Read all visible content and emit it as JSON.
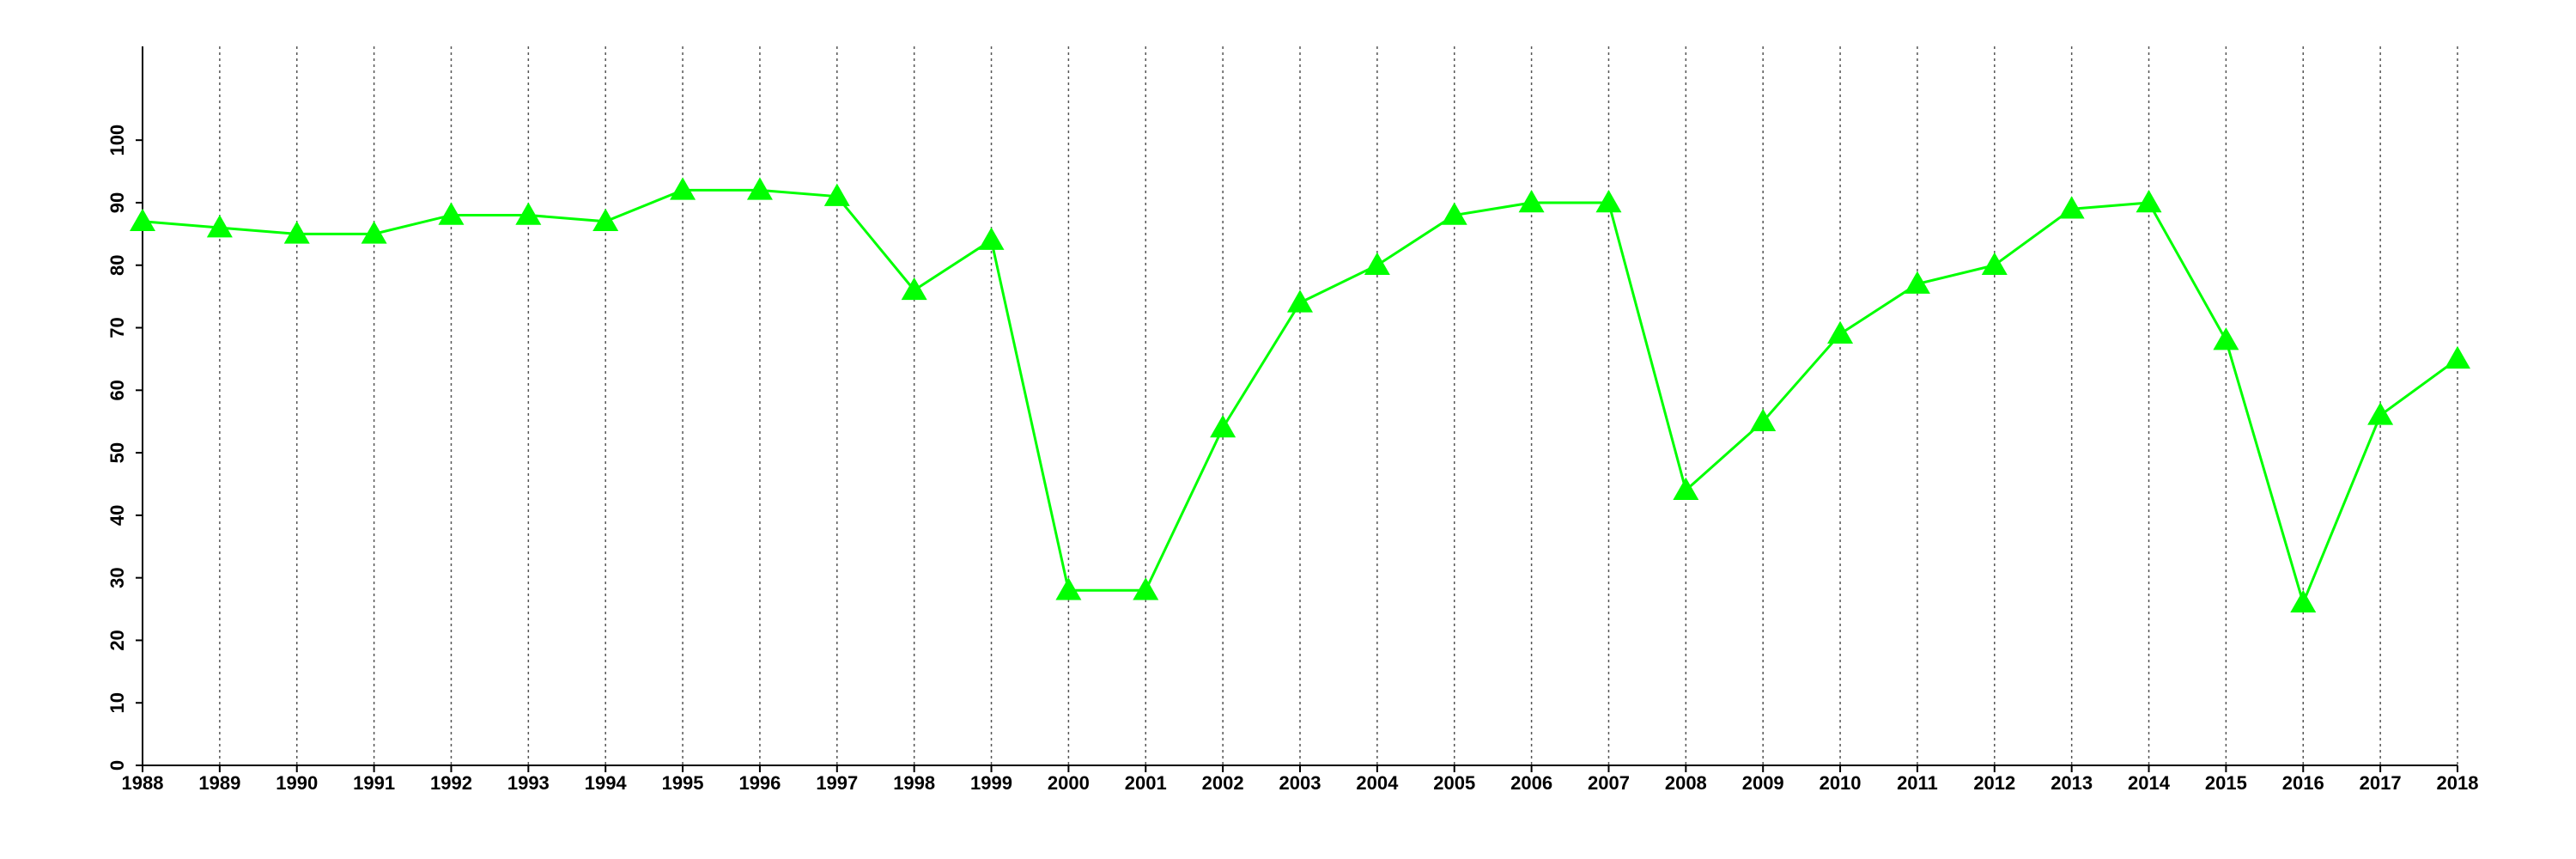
{
  "chart_data": {
    "type": "line",
    "x": [
      1988,
      1989,
      1990,
      1991,
      1992,
      1993,
      1994,
      1995,
      1996,
      1997,
      1998,
      1999,
      2000,
      2001,
      2002,
      2003,
      2004,
      2005,
      2006,
      2007,
      2008,
      2009,
      2010,
      2011,
      2012,
      2013,
      2014,
      2015,
      2016,
      2017,
      2018
    ],
    "series": [
      {
        "color": "#00ff00",
        "marker": "triangle",
        "values": [
          87,
          86,
          85,
          85,
          88,
          88,
          87,
          92,
          92,
          91,
          76,
          84,
          28,
          28,
          54,
          74,
          80,
          88,
          90,
          90,
          44,
          55,
          69,
          77,
          80,
          89,
          90,
          68,
          26,
          56,
          65
        ]
      }
    ],
    "xlim": [
      1988,
      2018
    ],
    "xticks": [
      1988,
      1989,
      1990,
      1991,
      1992,
      1993,
      1994,
      1995,
      1996,
      1997,
      1998,
      1999,
      2000,
      2001,
      2002,
      2003,
      2004,
      2005,
      2006,
      2007,
      2008,
      2009,
      2010,
      2011,
      2012,
      2013,
      2014,
      2015,
      2016,
      2017,
      2018
    ],
    "ylim": [
      0,
      115
    ],
    "yticks": [
      0,
      10,
      20,
      30,
      40,
      50,
      60,
      70,
      80,
      90,
      100
    ],
    "grid": "x"
  }
}
